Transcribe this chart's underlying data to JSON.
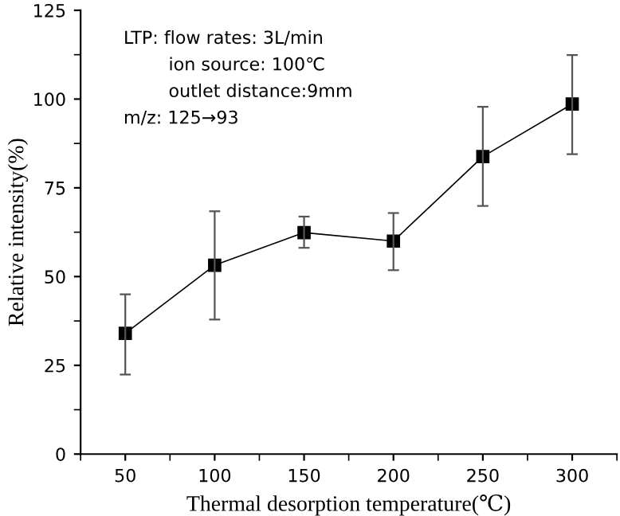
{
  "chart_data": {
    "type": "line",
    "xlabel": "Thermal desorption temperature(℃)",
    "ylabel": "Relative intensity(%)",
    "x": [
      50,
      100,
      150,
      200,
      250,
      300
    ],
    "series": [
      {
        "color": "#000000",
        "values": [
          34,
          53.2,
          62.4,
          60,
          83.8,
          98.6
        ],
        "errors": [
          [
            22.4,
            45
          ],
          [
            37.9,
            68.4
          ],
          [
            58.1,
            66.9
          ],
          [
            51.8,
            67.9
          ],
          [
            69.9,
            97.8
          ],
          [
            84.5,
            112.4
          ]
        ]
      }
    ],
    "xlim": [
      25,
      325
    ],
    "xticks": [
      50,
      100,
      150,
      200,
      250,
      300
    ],
    "ylim": [
      0,
      125
    ],
    "yticks": [
      0,
      25,
      50,
      75,
      100,
      125
    ],
    "marker": "square",
    "line_style": "solid",
    "grid": false,
    "legend": false,
    "annotations": [
      "LTP: flow rates: 3L/min",
      "        ion source: 100℃",
      "        outlet distance:9mm",
      "m/z: 125→93"
    ]
  }
}
